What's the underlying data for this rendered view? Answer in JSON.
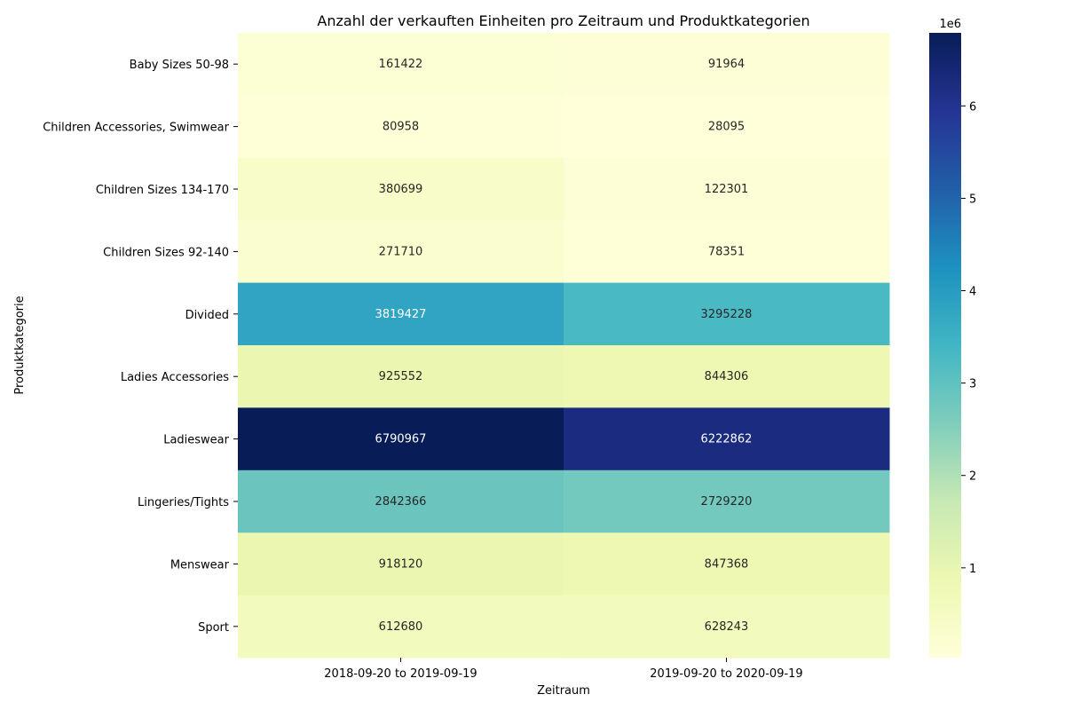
{
  "chart_data": {
    "type": "heatmap",
    "title": "Anzahl der verkauften Einheiten pro Zeitraum und Produktkategorien",
    "xlabel": "Zeitraum",
    "ylabel": "Produktkategorie",
    "x_categories": [
      "2018-09-20 to 2019-09-19",
      "2019-09-20 to 2020-09-19"
    ],
    "y_categories": [
      "Baby Sizes 50-98",
      "Children Accessories, Swimwear",
      "Children Sizes 134-170",
      "Children Sizes 92-140",
      "Divided",
      "Ladies Accessories",
      "Ladieswear",
      "Lingeries/Tights",
      "Menswear",
      "Sport"
    ],
    "values": [
      [
        161422,
        91964
      ],
      [
        80958,
        28095
      ],
      [
        380699,
        122301
      ],
      [
        271710,
        78351
      ],
      [
        3819427,
        3295228
      ],
      [
        925552,
        844306
      ],
      [
        6790967,
        6222862
      ],
      [
        2842366,
        2729220
      ],
      [
        918120,
        847368
      ],
      [
        612680,
        628243
      ]
    ],
    "colorbar": {
      "colormap": "YlGnBu",
      "vmin": 28095,
      "vmax": 6790967,
      "tick_values": [
        1000000,
        2000000,
        3000000,
        4000000,
        5000000,
        6000000
      ],
      "tick_labels": [
        "1",
        "2",
        "3",
        "4",
        "5",
        "6"
      ],
      "scale_label": "1e6"
    },
    "annotations": true,
    "grid": false
  }
}
